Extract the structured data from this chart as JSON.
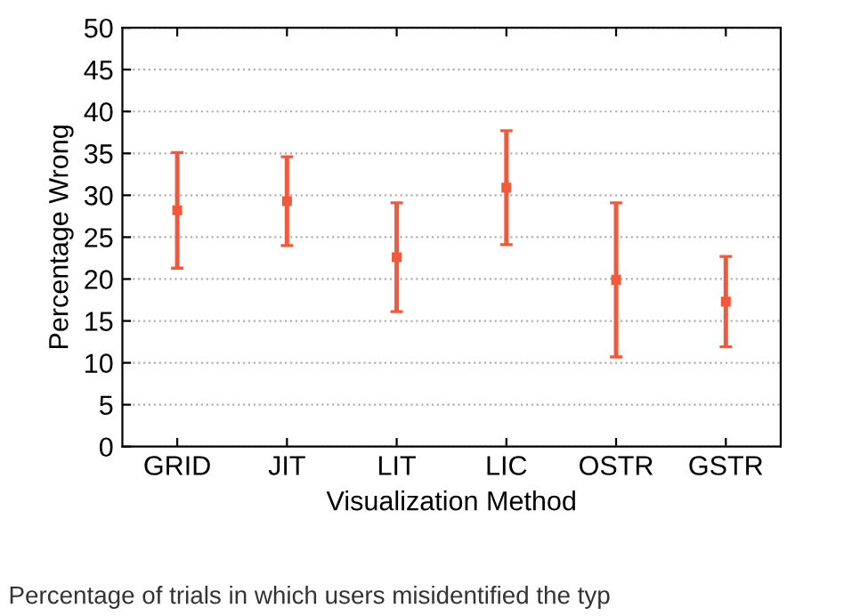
{
  "chart_data": {
    "type": "scatter",
    "xlabel": "Visualization Method",
    "ylabel": "Percentage Wrong",
    "categories": [
      "GRID",
      "JIT",
      "LIT",
      "LIC",
      "OSTR",
      "GSTR"
    ],
    "series": [
      {
        "color": "#f05a3c",
        "values": [
          28.2,
          29.3,
          22.6,
          30.9,
          19.9,
          17.3
        ],
        "errors": [
          6.9,
          5.3,
          6.5,
          6.8,
          9.2,
          5.4
        ]
      }
    ],
    "ylim": [
      0,
      50
    ],
    "yticks": [
      0,
      5,
      10,
      15,
      20,
      25,
      30,
      35,
      40,
      45,
      50
    ],
    "grid": "y",
    "marker": "square",
    "annotations": [
      "Percentage of trials in which users misidentified the typ"
    ]
  }
}
